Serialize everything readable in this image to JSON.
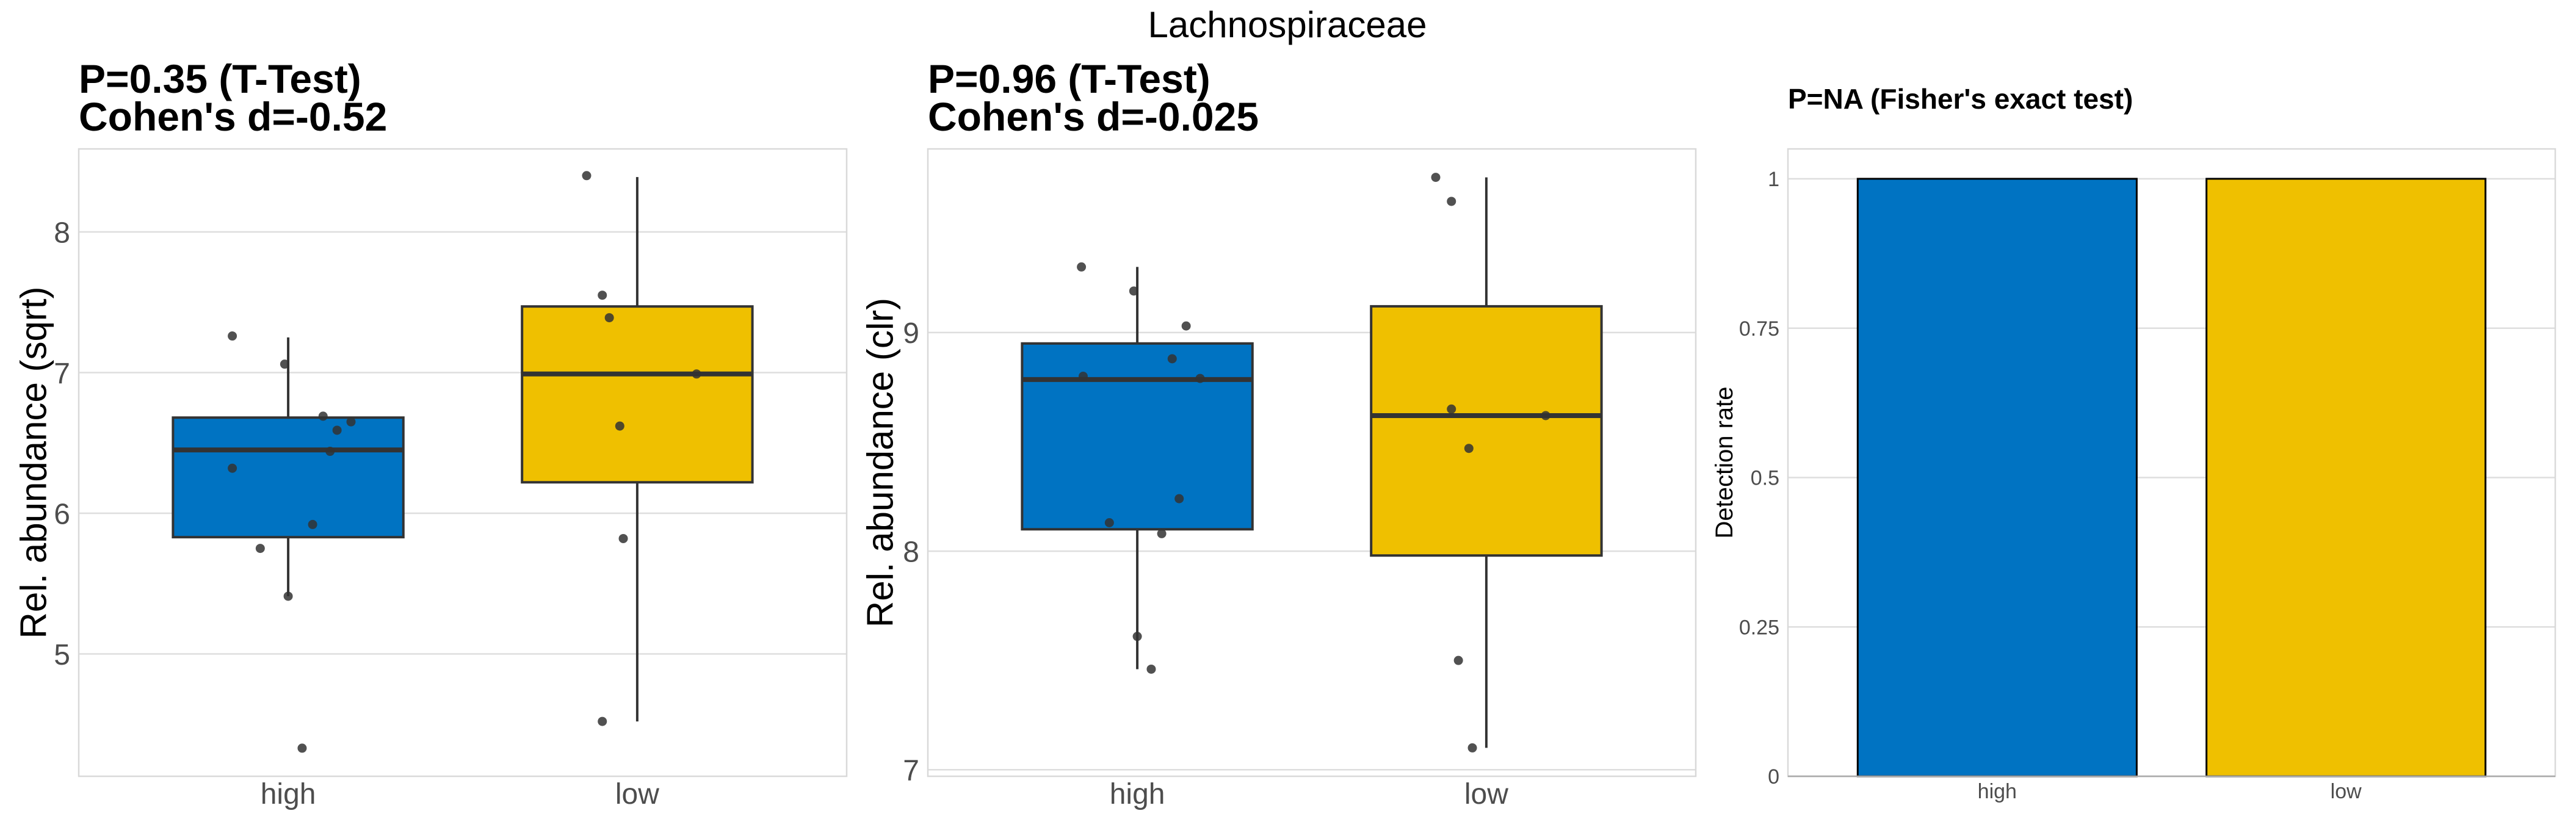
{
  "title": "Lachnospiraceae",
  "colors": {
    "high": "#0073C2",
    "low": "#EFC000",
    "point": "#333333",
    "median": "#333333"
  },
  "chart_data": [
    {
      "type": "box",
      "subtitle_line1": "P=0.35 (T-Test)",
      "subtitle_line2": "Cohen's d=-0.52",
      "ylabel": "Rel. abundance (sqrt)",
      "ylim": [
        4.13,
        8.59
      ],
      "yticks": [
        5,
        6,
        7,
        8
      ],
      "ytick_labels": [
        "5",
        "6",
        "7",
        "8"
      ],
      "categories": [
        "high",
        "low"
      ],
      "boxes": [
        {
          "group": "high",
          "q1": 5.83,
          "median": 6.45,
          "q3": 6.68,
          "whisker_low": 5.41,
          "whisker_high": 7.25
        },
        {
          "group": "low",
          "q1": 6.22,
          "median": 6.99,
          "q3": 7.47,
          "whisker_low": 4.52,
          "whisker_high": 8.39
        }
      ],
      "points": [
        {
          "group": "high",
          "value": 7.26,
          "jitter": -0.16
        },
        {
          "group": "high",
          "value": 7.06,
          "jitter": -0.01
        },
        {
          "group": "high",
          "value": 6.69,
          "jitter": 0.1
        },
        {
          "group": "high",
          "value": 6.65,
          "jitter": 0.18
        },
        {
          "group": "high",
          "value": 6.59,
          "jitter": 0.14
        },
        {
          "group": "high",
          "value": 6.44,
          "jitter": 0.12
        },
        {
          "group": "high",
          "value": 6.32,
          "jitter": -0.16
        },
        {
          "group": "high",
          "value": 5.92,
          "jitter": 0.07
        },
        {
          "group": "high",
          "value": 5.75,
          "jitter": -0.08
        },
        {
          "group": "high",
          "value": 5.41,
          "jitter": 0.0
        },
        {
          "group": "high",
          "value": 4.33,
          "jitter": 0.04
        },
        {
          "group": "low",
          "value": 8.4,
          "jitter": -0.145
        },
        {
          "group": "low",
          "value": 7.55,
          "jitter": -0.1
        },
        {
          "group": "low",
          "value": 7.39,
          "jitter": -0.08
        },
        {
          "group": "low",
          "value": 6.99,
          "jitter": 0.17
        },
        {
          "group": "low",
          "value": 6.62,
          "jitter": -0.05
        },
        {
          "group": "low",
          "value": 5.82,
          "jitter": -0.04
        },
        {
          "group": "low",
          "value": 4.52,
          "jitter": -0.1
        }
      ]
    },
    {
      "type": "box",
      "subtitle_line1": "P=0.96 (T-Test)",
      "subtitle_line2": "Cohen's d=-0.025",
      "ylabel": "Rel. abundance (clr)",
      "ylim": [
        6.97,
        9.84
      ],
      "yticks": [
        7,
        8,
        9
      ],
      "ytick_labels": [
        "7",
        "8",
        "9"
      ],
      "categories": [
        "high",
        "low"
      ],
      "boxes": [
        {
          "group": "high",
          "q1": 8.1,
          "median": 8.785,
          "q3": 8.95,
          "whisker_low": 7.46,
          "whisker_high": 9.3
        },
        {
          "group": "low",
          "q1": 7.98,
          "median": 8.62,
          "q3": 9.12,
          "whisker_low": 7.1,
          "whisker_high": 9.71
        }
      ],
      "points": [
        {
          "group": "high",
          "value": 9.3,
          "jitter": -0.16
        },
        {
          "group": "high",
          "value": 9.19,
          "jitter": -0.01
        },
        {
          "group": "high",
          "value": 9.03,
          "jitter": 0.14
        },
        {
          "group": "high",
          "value": 8.88,
          "jitter": 0.1
        },
        {
          "group": "high",
          "value": 8.8,
          "jitter": -0.155
        },
        {
          "group": "high",
          "value": 8.79,
          "jitter": 0.18
        },
        {
          "group": "high",
          "value": 8.24,
          "jitter": 0.12
        },
        {
          "group": "high",
          "value": 8.13,
          "jitter": -0.08
        },
        {
          "group": "high",
          "value": 8.08,
          "jitter": 0.07
        },
        {
          "group": "high",
          "value": 7.61,
          "jitter": 0.0
        },
        {
          "group": "high",
          "value": 7.46,
          "jitter": 0.04
        },
        {
          "group": "low",
          "value": 9.71,
          "jitter": -0.145
        },
        {
          "group": "low",
          "value": 9.6,
          "jitter": -0.1
        },
        {
          "group": "low",
          "value": 8.65,
          "jitter": -0.1
        },
        {
          "group": "low",
          "value": 8.62,
          "jitter": 0.17
        },
        {
          "group": "low",
          "value": 8.47,
          "jitter": -0.05
        },
        {
          "group": "low",
          "value": 7.5,
          "jitter": -0.08
        },
        {
          "group": "low",
          "value": 7.1,
          "jitter": -0.04
        }
      ]
    },
    {
      "type": "bar",
      "subtitle_line1": "P=NA (Fisher's exact test)",
      "ylabel": "Detection rate",
      "ylim": [
        0,
        1.05
      ],
      "yticks": [
        0,
        0.25,
        0.5,
        0.75,
        1
      ],
      "ytick_labels": [
        "0",
        "0.25",
        "0.5",
        "0.75",
        "1"
      ],
      "categories": [
        "high",
        "low"
      ],
      "values": [
        1,
        1
      ]
    }
  ]
}
